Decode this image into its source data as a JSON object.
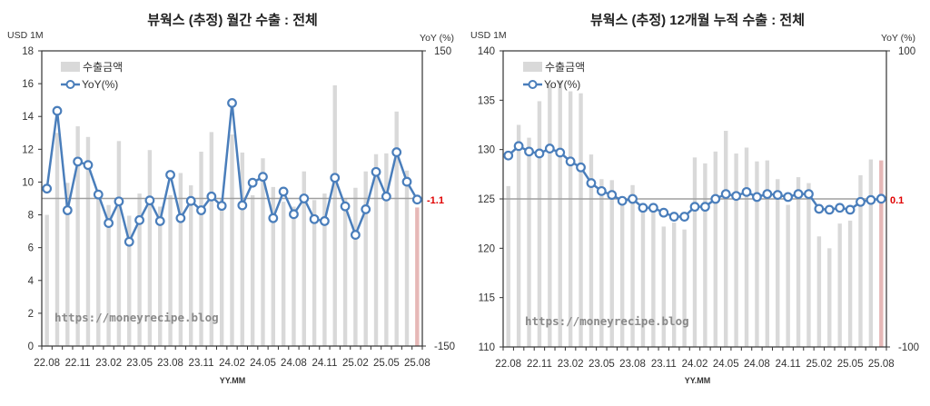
{
  "colors": {
    "bar": "#d9d9d9",
    "bar_last": "#e6b8b7",
    "line": "#4a7ebb",
    "ref": "#a0a0a0",
    "label": "#e00000"
  },
  "chart_data": [
    {
      "type": "bar+line",
      "title": "뷰웍스 (추정) 월간 수출 : 전체",
      "ylabel": "USD 1M",
      "y2label": "YoY (%)",
      "xlabel": "YY.MM",
      "ylim": [
        0,
        18
      ],
      "y2lim": [
        -150,
        150
      ],
      "yticks": [
        "0",
        "2",
        "4",
        "6",
        "8",
        "10",
        "12",
        "14",
        "16",
        "18"
      ],
      "y2ticks": [
        "-150",
        "150"
      ],
      "xticks": [
        "22.08",
        "22.11",
        "23.02",
        "23.05",
        "23.08",
        "23.11",
        "24.02",
        "24.05",
        "24.08",
        "24.11",
        "25.02",
        "25.05",
        "25.08"
      ],
      "legend": {
        "bar": "수출금액",
        "line": "YoY(%)"
      },
      "watermark": "https://moneyrecipe.blog",
      "last_label": "-1.1",
      "categories": [
        "22.08",
        "22.09",
        "22.10",
        "22.11",
        "22.12",
        "23.01",
        "23.02",
        "23.03",
        "23.04",
        "23.05",
        "23.06",
        "23.07",
        "23.08",
        "23.09",
        "23.10",
        "23.11",
        "23.12",
        "24.01",
        "24.02",
        "24.03",
        "24.04",
        "24.05",
        "24.06",
        "24.07",
        "24.08",
        "24.09",
        "24.10",
        "24.11",
        "24.12",
        "25.01",
        "25.02",
        "25.03",
        "25.04",
        "25.05",
        "25.06",
        "25.07",
        "25.08"
      ],
      "series": [
        {
          "name": "수출금액",
          "axis": "left",
          "values": [
            8.0,
            13.0,
            9.95,
            13.4,
            12.75,
            9.0,
            8.6,
            12.5,
            7.95,
            9.3,
            11.95,
            8.5,
            9.2,
            10.55,
            9.8,
            11.85,
            13.05,
            9.0,
            12.9,
            11.8,
            9.2,
            11.45,
            9.7,
            8.8,
            8.5,
            10.65,
            8.9,
            9.3,
            15.9,
            9.0,
            9.65,
            10.65,
            11.7,
            11.75,
            14.3,
            10.7,
            8.45
          ]
        },
        {
          "name": "YoY(%)",
          "axis": "right",
          "values": [
            10,
            89,
            -12,
            37.5,
            34,
            4,
            -25,
            -3,
            -44,
            -22,
            -2,
            -23,
            24,
            -20,
            -2.5,
            -12,
            2,
            -7.5,
            97,
            -7,
            16,
            22,
            -20,
            7,
            -16,
            0,
            -21,
            -23,
            21,
            -8,
            -37,
            -11,
            27,
            2,
            47,
            17,
            -1.1
          ]
        }
      ]
    },
    {
      "type": "bar+line",
      "title": "뷰웍스 (추정) 12개월 누적 수출 : 전체",
      "ylabel": "USD 1M",
      "y2label": "YoY (%)",
      "xlabel": "YY.MM",
      "ylim": [
        110,
        140
      ],
      "y2lim": [
        -100,
        100
      ],
      "yticks": [
        "110",
        "115",
        "120",
        "125",
        "130",
        "135",
        "140"
      ],
      "y2ticks": [
        "-100",
        "100"
      ],
      "xticks": [
        "22.08",
        "22.11",
        "23.02",
        "23.05",
        "23.08",
        "23.11",
        "24.02",
        "24.05",
        "24.08",
        "24.11",
        "25.02",
        "25.05",
        "25.08"
      ],
      "legend": {
        "bar": "수출금액",
        "line": "YoY(%)"
      },
      "watermark": "https://moneyrecipe.blog",
      "last_label": "0.1",
      "categories": [
        "22.08",
        "22.09",
        "22.10",
        "22.11",
        "22.12",
        "23.01",
        "23.02",
        "23.03",
        "23.04",
        "23.05",
        "23.06",
        "23.07",
        "23.08",
        "23.09",
        "23.10",
        "23.11",
        "23.12",
        "24.01",
        "24.02",
        "24.03",
        "24.04",
        "24.05",
        "24.06",
        "24.07",
        "24.08",
        "24.09",
        "24.10",
        "24.11",
        "24.12",
        "25.01",
        "25.02",
        "25.03",
        "25.04",
        "25.05",
        "25.06",
        "25.07",
        "25.08"
      ],
      "series": [
        {
          "name": "수출금액",
          "axis": "left",
          "values": [
            126.3,
            132.5,
            131.2,
            134.9,
            136.6,
            137.0,
            135.9,
            135.7,
            129.5,
            127.0,
            126.9,
            125.2,
            126.4,
            124.5,
            124.0,
            122.2,
            122.6,
            121.9,
            129.2,
            128.6,
            129.8,
            131.9,
            129.6,
            130.2,
            128.8,
            128.9,
            127.0,
            124.4,
            127.2,
            126.6,
            121.2,
            120.0,
            122.5,
            122.8,
            127.4,
            129.0,
            128.9
          ]
        },
        {
          "name": "YoY(%)",
          "axis": "right",
          "values": [
            29.3,
            35.7,
            32,
            30.7,
            34,
            31.3,
            25.3,
            21.3,
            10.7,
            5.3,
            2.7,
            -1.3,
            0,
            -6,
            -6,
            -9.3,
            -12,
            -12,
            -5.3,
            -5.3,
            0,
            3.3,
            2,
            4.7,
            1.3,
            3.3,
            2.7,
            1.3,
            3.3,
            3.3,
            -6.7,
            -7.3,
            -6,
            -7.3,
            -2,
            -0.7,
            0.1
          ]
        }
      ]
    }
  ]
}
